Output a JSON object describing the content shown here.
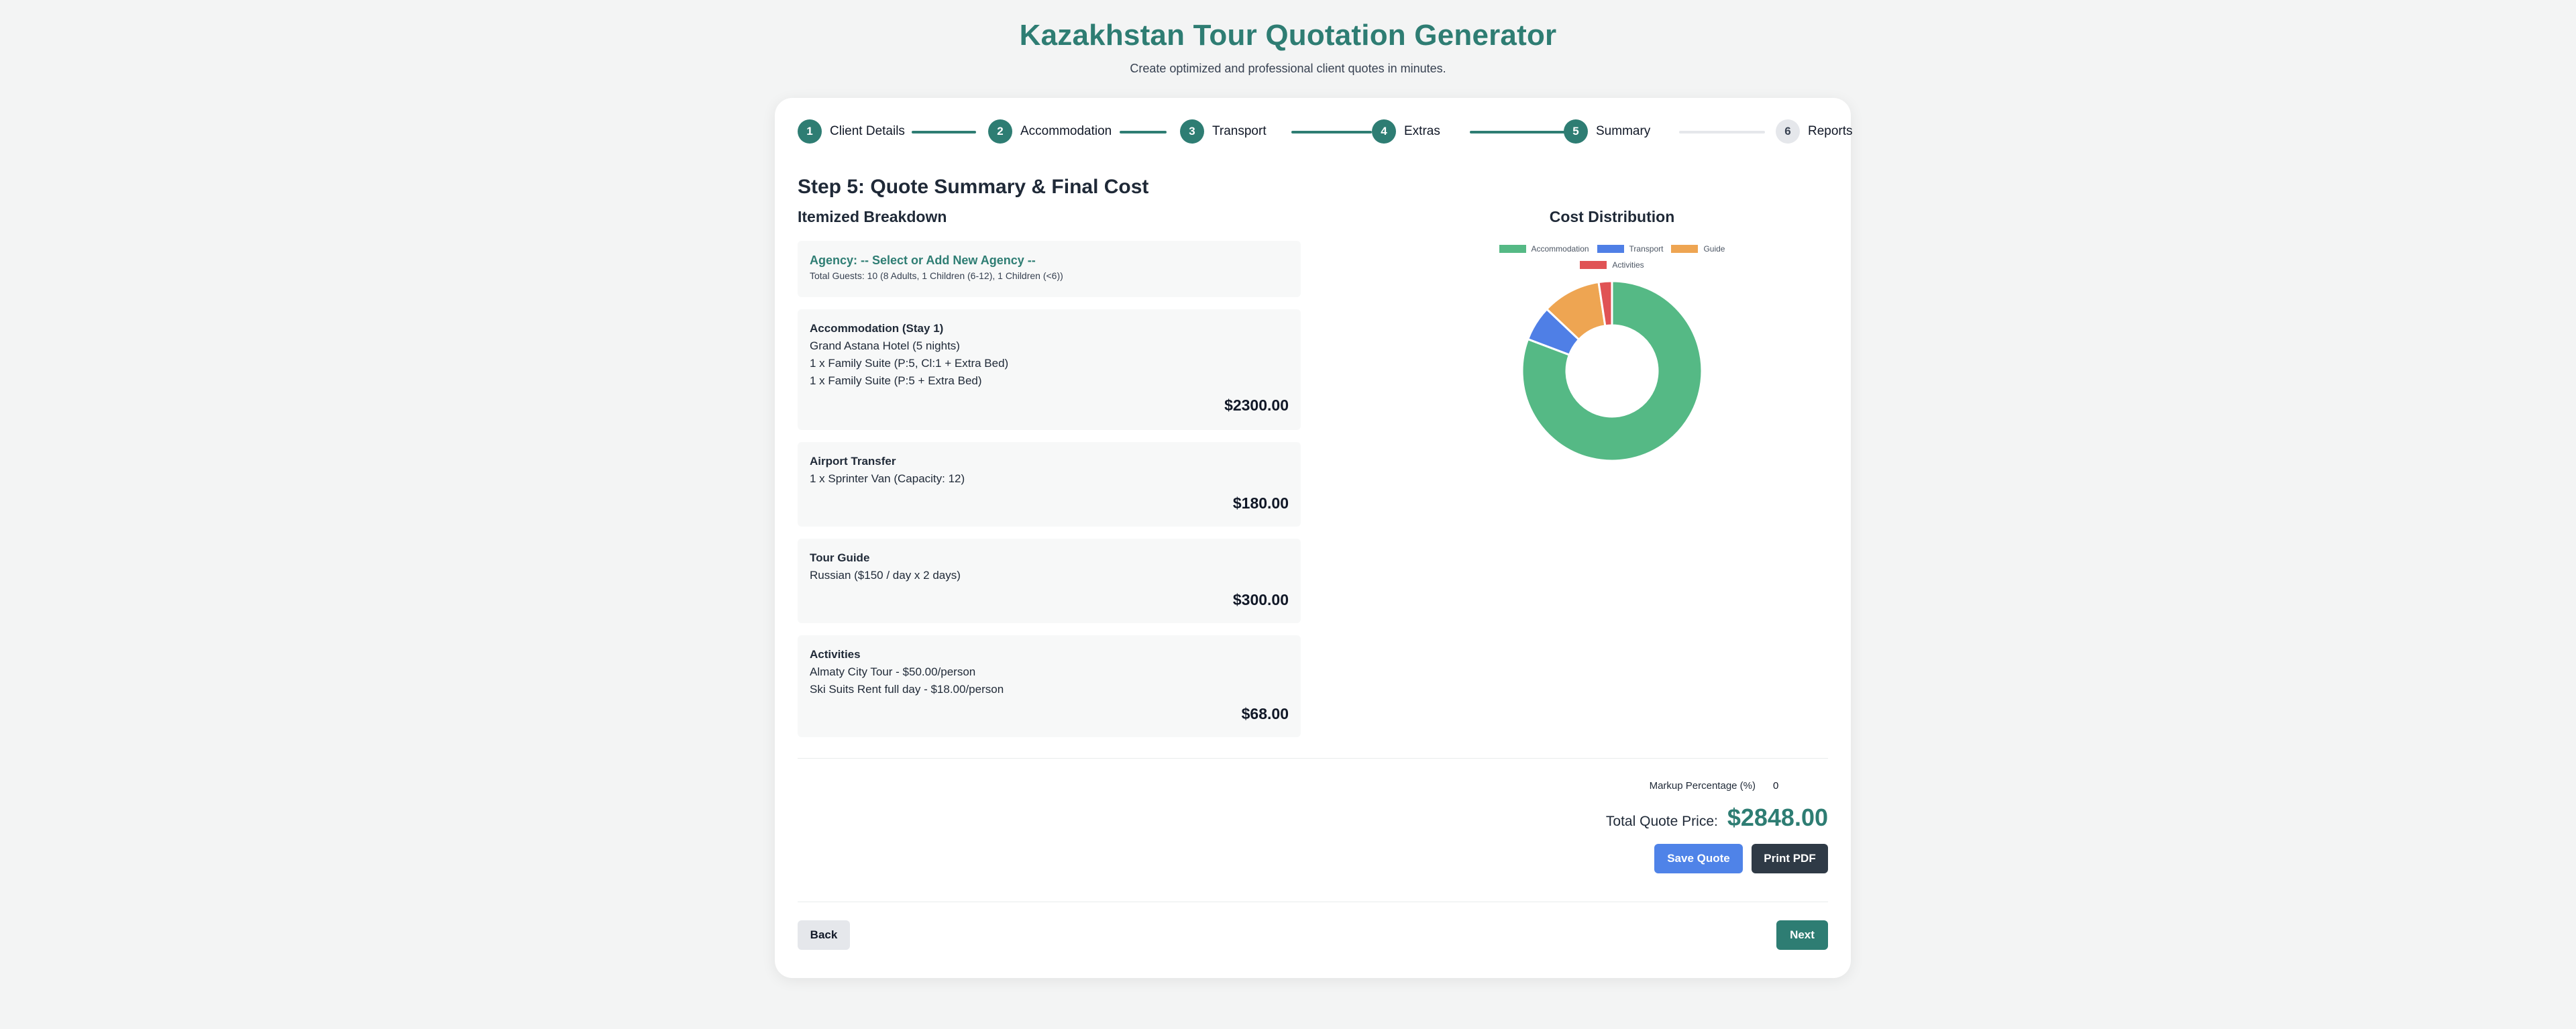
{
  "header": {
    "title": "Kazakhstan Tour Quotation Generator",
    "subtitle": "Create optimized and professional client quotes in minutes."
  },
  "stepper": [
    {
      "number": "1",
      "label": "Client Details",
      "active": true
    },
    {
      "number": "2",
      "label": "Accommodation",
      "active": true
    },
    {
      "number": "3",
      "label": "Transport",
      "active": true
    },
    {
      "number": "4",
      "label": "Extras",
      "active": true
    },
    {
      "number": "5",
      "label": "Summary",
      "active": true
    },
    {
      "number": "6",
      "label": "Reports",
      "active": false
    }
  ],
  "step_heading": "Step 5: Quote Summary & Final Cost",
  "breakdown": {
    "title": "Itemized Breakdown",
    "agency": {
      "label": "Agency: -- Select or Add New Agency --",
      "guests": "Total Guests: 10 (8 Adults, 1 Children (6-12), 1 Children (<6))"
    },
    "items": [
      {
        "title": "Accommodation (Stay 1)",
        "lines": [
          "Grand Astana Hotel (5 nights)",
          "1 x Family Suite (P:5, Cl:1 + Extra Bed)",
          "1 x Family Suite (P:5 + Extra Bed)"
        ],
        "price": "$2300.00"
      },
      {
        "title": "Airport Transfer",
        "lines": [
          "1 x Sprinter Van (Capacity: 12)"
        ],
        "price": "$180.00"
      },
      {
        "title": "Tour Guide",
        "lines": [
          "Russian ($150 / day x 2 days)"
        ],
        "price": "$300.00"
      },
      {
        "title": "Activities",
        "lines": [
          "Almaty City Tour - $50.00/person",
          "Ski Suits Rent full day - $18.00/person"
        ],
        "price": "$68.00"
      }
    ]
  },
  "distribution": {
    "title": "Cost Distribution"
  },
  "chart_data": {
    "type": "pie",
    "variant": "doughnut",
    "categories": [
      "Accommodation",
      "Transport",
      "Guide",
      "Activities"
    ],
    "values": [
      2300,
      180,
      300,
      68
    ],
    "colors": [
      "#55b985",
      "#4f7fe6",
      "#eea552",
      "#e05355"
    ],
    "legend": "top"
  },
  "totals": {
    "markup_label": "Markup Percentage (%)",
    "markup_value": "0",
    "total_label": "Total Quote Price:",
    "total_value": "$2848.00"
  },
  "buttons": {
    "save": "Save Quote",
    "print": "Print PDF",
    "back": "Back",
    "next": "Next"
  }
}
